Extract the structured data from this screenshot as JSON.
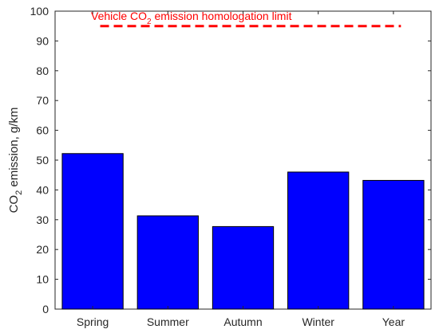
{
  "chart_data": {
    "type": "bar",
    "categories": [
      "Spring",
      "Summer",
      "Autumn",
      "Winter",
      "Year"
    ],
    "values": [
      52.2,
      31.3,
      27.7,
      46.0,
      43.2
    ],
    "ylabel": {
      "prefix": "CO",
      "subscript": "2",
      "suffix": " emission, g/km"
    },
    "ylim": [
      0,
      100
    ],
    "yticks": [
      0,
      10,
      20,
      30,
      40,
      50,
      60,
      70,
      80,
      90,
      100
    ],
    "bar_color": "#0000ff",
    "grid": false,
    "reference_line": {
      "value": 95,
      "color": "#ff0000",
      "style": "dashed",
      "x_start": 0.6,
      "x_end": 4.6,
      "label": {
        "prefix": "Vehicle CO",
        "subscript": "2",
        "suffix": " emission homologation limit"
      }
    }
  }
}
